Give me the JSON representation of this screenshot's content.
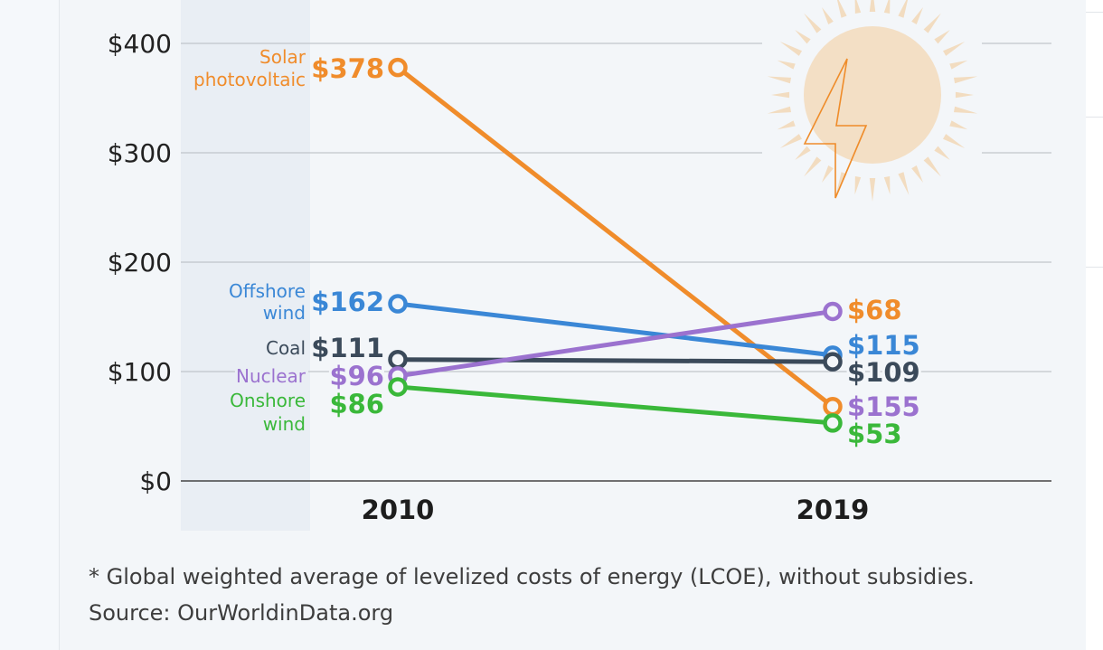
{
  "chart_data": {
    "type": "line",
    "x": [
      "2010",
      "2019"
    ],
    "ylim": [
      0,
      400
    ],
    "yticks": [
      "$0",
      "$100",
      "$200",
      "$300",
      "$400"
    ],
    "grid": true,
    "series": [
      {
        "name": [
          "Solar",
          "photovoltaic"
        ],
        "values": [
          378,
          68
        ],
        "labels": [
          "$378",
          "$68"
        ],
        "color": "#f08c2b"
      },
      {
        "name": [
          "Offshore",
          "wind"
        ],
        "values": [
          162,
          115
        ],
        "labels": [
          "$162",
          "$115"
        ],
        "color": "#3a87d6"
      },
      {
        "name": [
          "Coal"
        ],
        "values": [
          111,
          109
        ],
        "labels": [
          "$111",
          "$109"
        ],
        "color": "#3b4a5a"
      },
      {
        "name": [
          "Nuclear"
        ],
        "values": [
          96,
          155
        ],
        "labels": [
          "$96",
          "$155"
        ],
        "color": "#9b72cf"
      },
      {
        "name": [
          "Onshore",
          "wind"
        ],
        "values": [
          86,
          53
        ],
        "labels": [
          "$86",
          "$53"
        ],
        "color": "#3ab83a"
      }
    ],
    "decoration": "sun-with-lightning-icon"
  },
  "footnote": "* Global weighted average of levelized costs of energy (LCOE), without subsidies.",
  "source": "Source: OurWorldinData.org"
}
